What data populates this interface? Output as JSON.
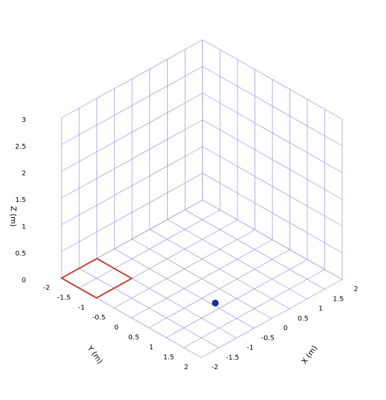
{
  "chart_data": {
    "type": "scatter",
    "projection": "3d",
    "title": "",
    "xlabel": "X (m)",
    "ylabel": "Y (m)",
    "zlabel": "Z (m)",
    "xlim": [
      -2,
      2
    ],
    "ylim": [
      -2,
      2
    ],
    "zlim": [
      0,
      3
    ],
    "grid": true,
    "x_ticks": [
      "-2",
      "-1.5",
      "-1",
      "-0.5",
      "0",
      "0.5",
      "1",
      "1.5",
      "2"
    ],
    "y_ticks": [
      "-2",
      "-1.5",
      "-1",
      "-0.5",
      "0",
      "0.5",
      "1",
      "1.5",
      "2"
    ],
    "z_ticks": [
      "0",
      "0.5",
      "1",
      "1.5",
      "2",
      "2.5",
      "3"
    ],
    "points": [
      {
        "x": -1.5,
        "y": 1.9,
        "z": 0.8,
        "color": "#1f2e9e"
      }
    ],
    "outlines": [
      {
        "color": "#c0392b",
        "z": 0,
        "corners": [
          [
            -2,
            -2
          ],
          [
            -2,
            -1
          ],
          [
            -1,
            -1
          ],
          [
            -1,
            -2
          ]
        ]
      }
    ],
    "colors": {
      "grid": "#8a8fd6",
      "point": "#1f2e9e",
      "outline": "#c0392b"
    }
  }
}
